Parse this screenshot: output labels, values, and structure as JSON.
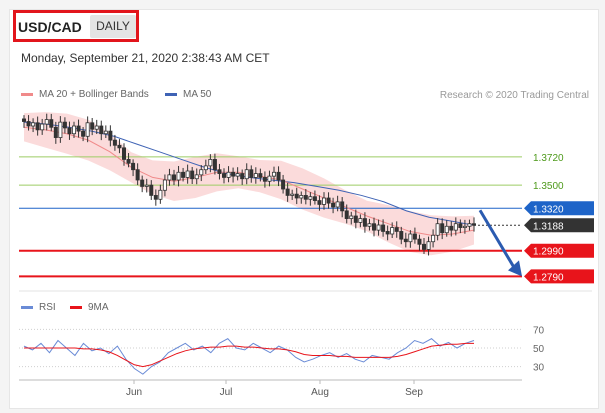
{
  "header": {
    "pair": "USD/CAD",
    "timeframe": "DAILY",
    "datetime": "Monday, September 21, 2020 2:38:43 AM CET",
    "credit": "Research © 2020 Trading Central"
  },
  "legend": {
    "ma20": "MA 20 + Bollinger Bands",
    "ma50": "MA 50",
    "rsi": "RSI",
    "ma9": "9MA"
  },
  "colors": {
    "ma20": "#f08a8a",
    "ma50": "#3f63b5",
    "band_fill": "#f9cfcf",
    "resistance": "#9ccc65",
    "pivot": "#1e64c8",
    "support": "#e8141b",
    "current": "#333333",
    "candle_up": "#333333",
    "candle_down": "#333333",
    "rsi": "#6a8bd6",
    "rsi_ma": "#e8141b"
  },
  "chart_data": [
    {
      "type": "candlestick",
      "title": "USD/CAD",
      "ylim": [
        1.27,
        1.41
      ],
      "x_ticks": [
        "Jun",
        "Jul",
        "Aug",
        "Sep"
      ],
      "levels": [
        {
          "label": "1.3720",
          "value": 1.372,
          "kind": "resistance"
        },
        {
          "label": "1.3500",
          "value": 1.35,
          "kind": "resistance"
        },
        {
          "label": "1.3320",
          "value": 1.332,
          "kind": "pivot"
        },
        {
          "label": "1.3188",
          "value": 1.3188,
          "kind": "current"
        },
        {
          "label": "1.2990",
          "value": 1.299,
          "kind": "support"
        },
        {
          "label": "1.2790",
          "value": 1.279,
          "kind": "support"
        }
      ],
      "close_series": [
        1.3995,
        1.396,
        1.3985,
        1.393,
        1.3975,
        1.401,
        1.395,
        1.387,
        1.399,
        1.3945,
        1.39,
        1.396,
        1.392,
        1.388,
        1.3985,
        1.3935,
        1.396,
        1.39,
        1.392,
        1.385,
        1.381,
        1.379,
        1.37,
        1.367,
        1.362,
        1.354,
        1.349,
        1.35,
        1.342,
        1.339,
        1.346,
        1.354,
        1.358,
        1.354,
        1.36,
        1.356,
        1.361,
        1.355,
        1.358,
        1.362,
        1.365,
        1.37,
        1.362,
        1.359,
        1.356,
        1.36,
        1.357,
        1.359,
        1.355,
        1.362,
        1.356,
        1.359,
        1.356,
        1.353,
        1.357,
        1.36,
        1.354,
        1.347,
        1.342,
        1.343,
        1.34,
        1.342,
        1.339,
        1.341,
        1.338,
        1.335,
        1.34,
        1.336,
        1.333,
        1.337,
        1.33,
        1.324,
        1.326,
        1.321,
        1.324,
        1.318,
        1.32,
        1.315,
        1.319,
        1.314,
        1.312,
        1.317,
        1.314,
        1.308,
        1.306,
        1.312,
        1.308,
        1.304,
        1.3,
        1.306,
        1.311,
        1.32,
        1.313,
        1.318,
        1.315,
        1.32,
        1.317,
        1.318,
        1.32,
        1.3188
      ],
      "ma50_series": [
        1.399,
        1.3975,
        1.395,
        1.392,
        1.388,
        1.382,
        1.376,
        1.37,
        1.364,
        1.359,
        1.356,
        1.354,
        1.352,
        1.349,
        1.346,
        1.342,
        1.337,
        1.33,
        1.325,
        1.322,
        1.3188
      ],
      "ma20_series": [
        1.395,
        1.393,
        1.39,
        1.385,
        1.376,
        1.364,
        1.356,
        1.353,
        1.356,
        1.36,
        1.36,
        1.357,
        1.354,
        1.347,
        1.34,
        1.333,
        1.326,
        1.32,
        1.314,
        1.311,
        1.312,
        1.315
      ]
    },
    {
      "type": "line",
      "title": "RSI",
      "ylim": [
        20,
        80
      ],
      "y_ticks": [
        70,
        50,
        30
      ],
      "series": [
        {
          "name": "RSI",
          "values": [
            52,
            48,
            55,
            45,
            58,
            50,
            42,
            55,
            47,
            50,
            44,
            52,
            38,
            28,
            22,
            30,
            35,
            45,
            50,
            55,
            48,
            52,
            45,
            55,
            60,
            50,
            48,
            55,
            50,
            45,
            52,
            48,
            40,
            35,
            38,
            42,
            45,
            40,
            44,
            38,
            35,
            42,
            40,
            38,
            45,
            50,
            58,
            55,
            60,
            52,
            56,
            50,
            55,
            58
          ]
        },
        {
          "name": "9MA",
          "values": [
            50,
            50,
            50,
            50,
            50,
            50,
            50,
            49,
            49,
            48,
            46,
            42,
            37,
            32,
            30,
            32,
            36,
            40,
            44,
            47,
            49,
            50,
            51,
            51,
            52,
            52,
            51,
            51,
            50,
            49,
            49,
            48,
            46,
            43,
            42,
            42,
            42,
            41,
            41,
            40,
            40,
            40,
            40,
            40,
            41,
            43,
            46,
            49,
            52,
            53,
            54,
            54,
            55,
            55
          ]
        }
      ]
    }
  ]
}
